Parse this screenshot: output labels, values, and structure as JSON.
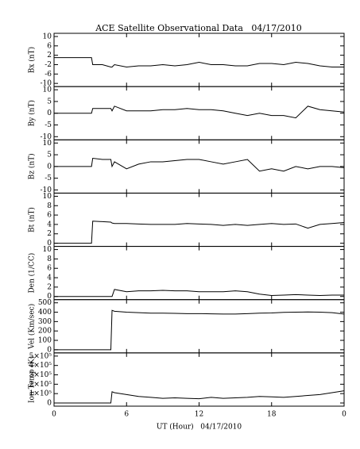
{
  "chart_data": [
    {
      "type": "line",
      "title": "ACE Satellite Observational Data   04/17/2010",
      "ylabel": "Bx (nT)",
      "ylim": [
        -10,
        10
      ],
      "yticks": [
        -10,
        -6,
        -2,
        2,
        6,
        10
      ],
      "series": [
        {
          "color": "#000000",
          "x": [
            0,
            1,
            2,
            3,
            3.1,
            3.2,
            4,
            4.7,
            4.8,
            5,
            6,
            7,
            8,
            9,
            10,
            11,
            12,
            13,
            14,
            15,
            16,
            17,
            18,
            19,
            20,
            21,
            22,
            23,
            24
          ],
          "values": [
            1,
            1,
            1,
            1,
            1,
            -2,
            -2,
            -3,
            -3,
            -2,
            -3,
            -2.5,
            -2.5,
            -2,
            -2.5,
            -2,
            -1,
            -2,
            -2,
            -2.5,
            -2.5,
            -1.5,
            -1.5,
            -2,
            -1,
            -1.5,
            -2.5,
            -3,
            -3
          ]
        }
      ]
    },
    {
      "type": "line",
      "ylabel": "By (nT)",
      "ylim": [
        -10,
        10
      ],
      "yticks": [
        -10,
        -5,
        0,
        5,
        10
      ],
      "series": [
        {
          "color": "#000000",
          "x": [
            0,
            1,
            2,
            3,
            3.1,
            3.2,
            4,
            4.7,
            4.8,
            5,
            6,
            7,
            8,
            9,
            10,
            11,
            12,
            13,
            14,
            15,
            16,
            17,
            18,
            19,
            20,
            21,
            22,
            23,
            24
          ],
          "values": [
            0,
            0,
            0,
            0,
            0,
            2,
            2,
            2,
            1,
            3,
            1,
            1,
            1,
            1.5,
            1.5,
            2,
            1.5,
            1.5,
            1,
            0,
            -1,
            0,
            -1,
            -1,
            -2,
            3,
            1.5,
            1,
            0.5
          ]
        }
      ]
    },
    {
      "type": "line",
      "ylabel": "Bz (nT)",
      "ylim": [
        -10,
        10
      ],
      "yticks": [
        -10,
        -5,
        0,
        5,
        10
      ],
      "series": [
        {
          "color": "#000000",
          "x": [
            0,
            1,
            2,
            3,
            3.1,
            3.2,
            4,
            4.7,
            4.8,
            5,
            6,
            7,
            8,
            9,
            10,
            11,
            12,
            13,
            14,
            15,
            16,
            17,
            18,
            19,
            20,
            21,
            22,
            23,
            24
          ],
          "values": [
            0,
            0,
            0,
            0,
            0,
            3.5,
            3,
            3,
            0,
            2,
            -1,
            1,
            2,
            2,
            2.5,
            3,
            3,
            2,
            1,
            2,
            3,
            -2,
            -1,
            -2,
            0,
            -1,
            0,
            0,
            -0.5
          ]
        }
      ]
    },
    {
      "type": "line",
      "ylabel": "Bt (nT)",
      "ylim": [
        0,
        10
      ],
      "yticks": [
        0,
        2,
        4,
        6,
        8,
        10
      ],
      "series": [
        {
          "color": "#000000",
          "x": [
            0,
            1,
            2,
            3,
            3.1,
            3.2,
            4,
            4.7,
            4.8,
            5,
            6,
            7,
            8,
            9,
            10,
            11,
            12,
            13,
            14,
            15,
            16,
            17,
            18,
            19,
            20,
            21,
            22,
            23,
            24
          ],
          "values": [
            0,
            0,
            0,
            0,
            0,
            4.7,
            4.6,
            4.5,
            4.3,
            4.2,
            4.2,
            4.1,
            4.0,
            4.0,
            4.0,
            4.2,
            4.1,
            4.0,
            3.8,
            4.0,
            3.8,
            4.0,
            4.2,
            4.0,
            4.1,
            3.2,
            4.0,
            4.2,
            4.4
          ]
        }
      ]
    },
    {
      "type": "line",
      "ylabel": "Den (1/CC)",
      "ylim": [
        0,
        10
      ],
      "yticks": [
        0,
        2,
        4,
        6,
        8,
        10
      ],
      "series": [
        {
          "color": "#000000",
          "x": [
            0,
            1,
            2,
            3,
            3.1,
            3.2,
            4,
            4.7,
            4.8,
            5,
            6,
            7,
            8,
            9,
            10,
            11,
            12,
            13,
            14,
            15,
            16,
            17,
            18,
            19,
            20,
            21,
            22,
            23,
            24
          ],
          "values": [
            0,
            0,
            0,
            0,
            0,
            0,
            0,
            0,
            0,
            1.5,
            1.0,
            1.2,
            1.2,
            1.3,
            1.2,
            1.2,
            1.0,
            1.0,
            1.0,
            1.2,
            1.0,
            0.5,
            0.2,
            0.3,
            0.4,
            0.3,
            0.2,
            0.3,
            0.3
          ]
        }
      ]
    },
    {
      "type": "line",
      "ylabel": "Vel (Km/sec)",
      "ylim": [
        0,
        500
      ],
      "yticks": [
        0,
        100,
        200,
        300,
        400,
        500
      ],
      "series": [
        {
          "color": "#000000",
          "x": [
            0,
            1,
            2,
            3,
            3.1,
            3.2,
            4,
            4.7,
            4.8,
            5,
            6,
            7,
            8,
            9,
            10,
            11,
            12,
            13,
            14,
            15,
            16,
            17,
            18,
            19,
            20,
            21,
            22,
            23,
            24
          ],
          "values": [
            0,
            0,
            0,
            0,
            0,
            0,
            0,
            0,
            420,
            410,
            400,
            395,
            390,
            390,
            388,
            385,
            385,
            382,
            380,
            380,
            385,
            390,
            392,
            398,
            400,
            402,
            400,
            395,
            380
          ]
        }
      ]
    },
    {
      "type": "line",
      "ylabel": "Ion Temp (K)",
      "ylim": [
        0,
        500000
      ],
      "yticks": [
        0,
        {
          "value": 100000,
          "label": "1×10⁵"
        },
        {
          "value": 200000,
          "label": "2×10⁵"
        },
        {
          "value": 300000,
          "label": "3×10⁵"
        },
        {
          "value": 400000,
          "label": "4×10⁵"
        },
        {
          "value": 500000,
          "label": "5×10⁵"
        }
      ],
      "xlabel": "UT (Hour)   04/17/2010",
      "xlim": [
        0,
        24
      ],
      "xticks": [
        0,
        6,
        12,
        18,
        {
          "value": 24,
          "label": "0"
        }
      ],
      "series": [
        {
          "color": "#000000",
          "x": [
            0,
            1,
            2,
            3,
            3.1,
            3.2,
            4,
            4.7,
            4.8,
            5,
            6,
            7,
            8,
            9,
            10,
            11,
            12,
            13,
            14,
            15,
            16,
            17,
            18,
            19,
            20,
            21,
            22,
            23,
            24
          ],
          "values": [
            0,
            0,
            0,
            0,
            0,
            0,
            0,
            0,
            120000,
            110000,
            90000,
            70000,
            60000,
            50000,
            55000,
            50000,
            45000,
            60000,
            50000,
            55000,
            60000,
            70000,
            65000,
            60000,
            70000,
            80000,
            90000,
            110000,
            130000
          ]
        }
      ]
    }
  ]
}
